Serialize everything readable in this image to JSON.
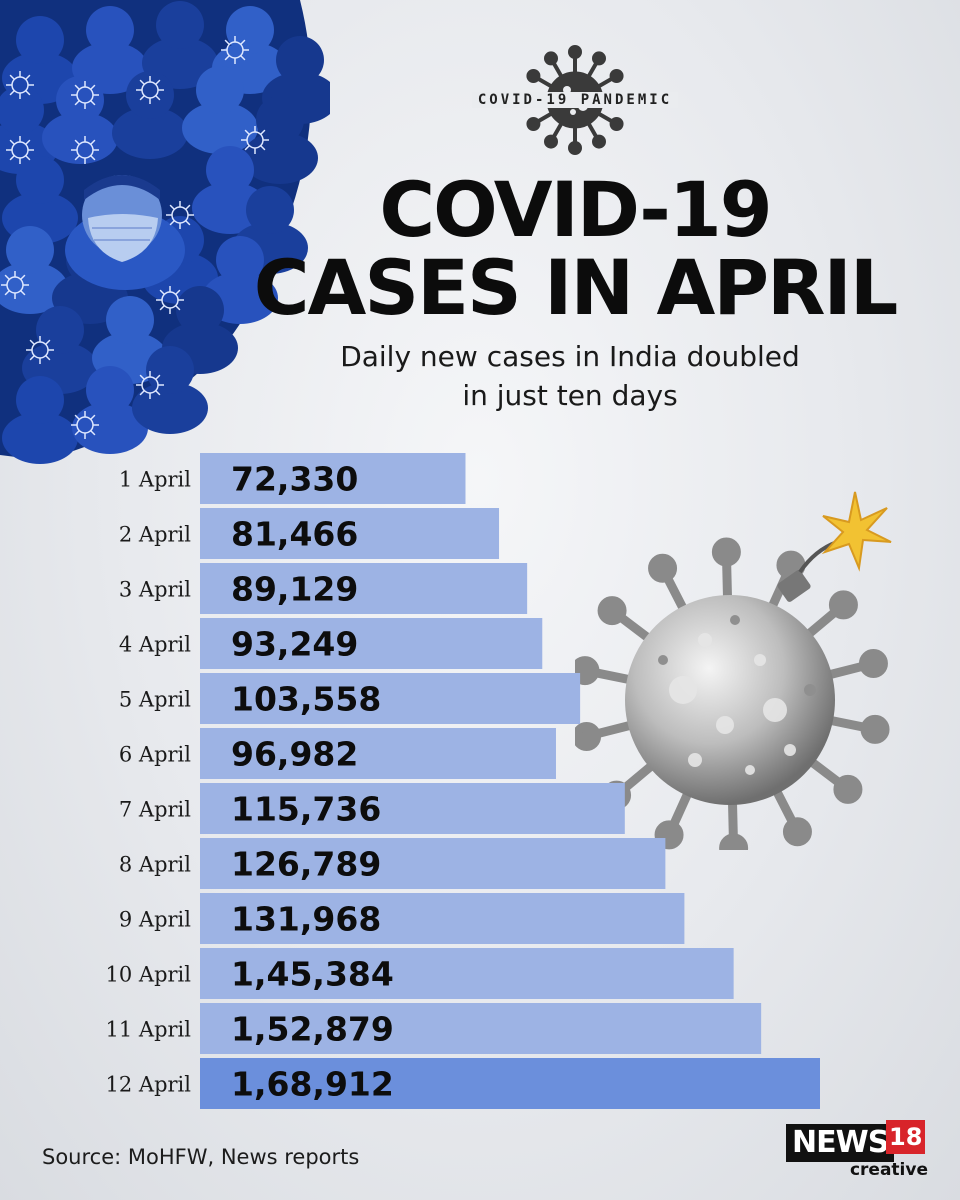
{
  "badge": {
    "text": "COVID-19 PANDEMIC"
  },
  "title": {
    "line1": "COVID-19",
    "line2": "CASES IN APRIL"
  },
  "subtitle": {
    "line1": "Daily new cases in India doubled",
    "line2": "in just ten days"
  },
  "source": "Source: MoHFW, News reports",
  "logo": {
    "news": "NEWS",
    "number": "18",
    "creative": "creative"
  },
  "colors": {
    "bar": "#9db3e4",
    "bar_highlight": "#6b8fdc",
    "crowd": "#1e44a8",
    "title": "#0c0c0c"
  },
  "chart_data": {
    "type": "bar",
    "orientation": "horizontal",
    "categories": [
      "1 April",
      "2 April",
      "3 April",
      "4 April",
      "5 April",
      "6 April",
      "7 April",
      "8 April",
      "9 April",
      "10 April",
      "11 April",
      "12 April"
    ],
    "values": [
      72330,
      81466,
      89129,
      93249,
      103558,
      96982,
      115736,
      126789,
      131968,
      145384,
      152879,
      168912
    ],
    "value_labels": [
      "72,330",
      "81,466",
      "89,129",
      "93,249",
      "103,558",
      "96,982",
      "115,736",
      "126,789",
      "131,968",
      "1,45,384",
      "1,52,879",
      "1,68,912"
    ],
    "highlight_index": 11
  }
}
